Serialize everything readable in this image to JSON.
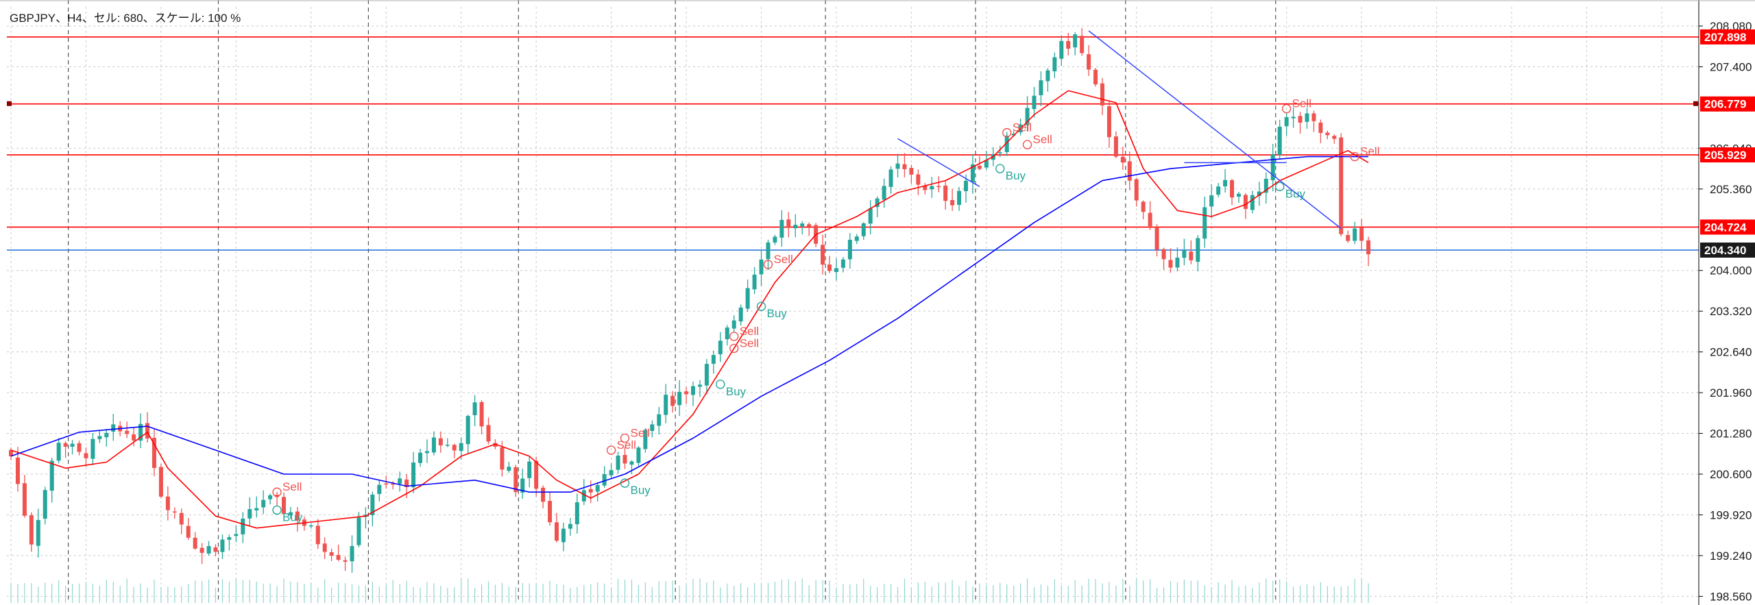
{
  "header": {
    "title": "GBPJPY、H4、セル: 680、スケール: 100 %"
  },
  "colors": {
    "background": "#ffffff",
    "grid": "#c8c8c8",
    "bull_candle": "#26a69a",
    "bear_candle": "#ef5350",
    "ma_short": "#ff0000",
    "ma_long": "#0000ff",
    "level_line": "#ff0000",
    "current_price_line": "#1e6fd9",
    "current_price_label_bg": "#1a1a1a",
    "level_label_bg": "#ff0000",
    "buy_signal": "#26a69a",
    "sell_signal": "#ef5350",
    "trendline": "#3344ff",
    "volume": "#8fd6cf"
  },
  "chart_data": {
    "type": "candlestick",
    "symbol": "GBPJPY",
    "timeframe": "H4",
    "ylim": [
      198.45,
      208.4
    ],
    "y_ticks": [
      "208.080",
      "207.400",
      "206.040",
      "205.360",
      "204.000",
      "203.320",
      "202.640",
      "201.960",
      "201.280",
      "200.600",
      "199.920",
      "199.240",
      "198.560"
    ],
    "grid": true,
    "horizontal_levels": [
      {
        "label": "207.898",
        "value": 207.898
      },
      {
        "label": "206.779",
        "value": 206.779
      },
      {
        "label": "205.929",
        "value": 205.929
      },
      {
        "label": "204.724",
        "value": 204.724
      }
    ],
    "current_price": {
      "label": "204.340",
      "value": 204.34
    },
    "candle_count": 200,
    "dividers_at_candle": [
      8,
      30,
      52,
      74,
      97,
      119,
      141,
      163,
      185
    ],
    "close_path": [
      [
        0,
        200.9
      ],
      [
        3,
        199.5
      ],
      [
        7,
        201.2
      ],
      [
        10,
        200.9
      ],
      [
        15,
        201.3
      ],
      [
        20,
        201.3
      ],
      [
        22,
        200.3
      ],
      [
        25,
        199.8
      ],
      [
        28,
        199.3
      ],
      [
        33,
        199.6
      ],
      [
        37,
        200.2
      ],
      [
        42,
        199.9
      ],
      [
        45,
        199.5
      ],
      [
        49,
        199.2
      ],
      [
        53,
        200.3
      ],
      [
        58,
        200.5
      ],
      [
        62,
        201.2
      ],
      [
        65,
        201.0
      ],
      [
        68,
        201.7
      ],
      [
        70,
        201.2
      ],
      [
        74,
        200.4
      ],
      [
        76,
        200.7
      ],
      [
        80,
        199.6
      ],
      [
        84,
        200.2
      ],
      [
        88,
        200.7
      ],
      [
        92,
        201.0
      ],
      [
        96,
        201.8
      ],
      [
        100,
        202.1
      ],
      [
        103,
        202.5
      ],
      [
        106,
        203.2
      ],
      [
        110,
        204.3
      ],
      [
        113,
        204.8
      ],
      [
        117,
        204.6
      ],
      [
        120,
        204.0
      ],
      [
        123,
        204.4
      ],
      [
        127,
        205.3
      ],
      [
        130,
        205.7
      ],
      [
        134,
        205.4
      ],
      [
        138,
        205.2
      ],
      [
        142,
        205.8
      ],
      [
        146,
        206.2
      ],
      [
        150,
        206.8
      ],
      [
        153,
        207.6
      ],
      [
        156,
        207.9
      ],
      [
        159,
        207.0
      ],
      [
        161,
        206.3
      ],
      [
        164,
        205.4
      ],
      [
        167,
        204.7
      ],
      [
        170,
        204.0
      ],
      [
        173,
        204.3
      ],
      [
        175,
        205.0
      ],
      [
        178,
        205.5
      ],
      [
        181,
        205.0
      ],
      [
        184,
        205.4
      ],
      [
        186,
        206.5
      ],
      [
        190,
        206.5
      ],
      [
        194,
        206.1
      ],
      [
        195,
        204.6
      ],
      [
        197,
        204.6
      ],
      [
        199,
        204.34
      ]
    ],
    "series": [
      {
        "name": "",
        "kind": "ma_short",
        "points": [
          [
            0,
            201.0
          ],
          [
            8,
            200.7
          ],
          [
            14,
            200.8
          ],
          [
            20,
            201.3
          ],
          [
            23,
            200.7
          ],
          [
            30,
            199.9
          ],
          [
            36,
            199.7
          ],
          [
            44,
            199.8
          ],
          [
            52,
            199.9
          ],
          [
            60,
            200.4
          ],
          [
            66,
            200.9
          ],
          [
            71,
            201.1
          ],
          [
            76,
            200.9
          ],
          [
            80,
            200.5
          ],
          [
            85,
            200.2
          ],
          [
            92,
            200.6
          ],
          [
            100,
            201.6
          ],
          [
            106,
            202.7
          ],
          [
            112,
            203.8
          ],
          [
            118,
            204.6
          ],
          [
            124,
            204.9
          ],
          [
            130,
            205.3
          ],
          [
            137,
            205.5
          ],
          [
            144,
            205.9
          ],
          [
            150,
            206.6
          ],
          [
            155,
            207.0
          ],
          [
            162,
            206.8
          ],
          [
            166,
            205.7
          ],
          [
            171,
            205.0
          ],
          [
            176,
            204.9
          ],
          [
            181,
            205.1
          ],
          [
            186,
            205.5
          ],
          [
            192,
            205.8
          ],
          [
            196,
            206.0
          ],
          [
            199,
            205.8
          ]
        ]
      },
      {
        "name": "",
        "kind": "ma_long",
        "points": [
          [
            0,
            200.9
          ],
          [
            10,
            201.3
          ],
          [
            20,
            201.4
          ],
          [
            30,
            201.0
          ],
          [
            40,
            200.6
          ],
          [
            50,
            200.6
          ],
          [
            58,
            200.4
          ],
          [
            68,
            200.5
          ],
          [
            76,
            200.3
          ],
          [
            82,
            200.3
          ],
          [
            90,
            200.6
          ],
          [
            100,
            201.2
          ],
          [
            110,
            201.9
          ],
          [
            120,
            202.5
          ],
          [
            130,
            203.2
          ],
          [
            140,
            204.0
          ],
          [
            150,
            204.8
          ],
          [
            160,
            205.5
          ],
          [
            170,
            205.7
          ],
          [
            180,
            205.8
          ],
          [
            190,
            205.9
          ],
          [
            199,
            205.9
          ]
        ]
      }
    ],
    "trendlines": [
      {
        "from": [
          130,
          206.2
        ],
        "to": [
          142,
          205.4
        ]
      },
      {
        "from": [
          158,
          208.0
        ],
        "to": [
          195,
          204.7
        ]
      },
      {
        "from": [
          172,
          205.8
        ],
        "to": [
          187,
          205.8
        ]
      }
    ],
    "signals": [
      {
        "type": "Sell",
        "label": "Sell",
        "candle": 39,
        "price": 200.3
      },
      {
        "type": "Buy",
        "label": "Buy",
        "candle": 39,
        "price": 200.0
      },
      {
        "type": "Sell",
        "label": "Sell",
        "candle": 90,
        "price": 201.2
      },
      {
        "type": "Sell",
        "label": "Sell",
        "candle": 88,
        "price": 201.0
      },
      {
        "type": "Buy",
        "label": "Buy",
        "candle": 90,
        "price": 200.45
      },
      {
        "type": "Buy",
        "label": "Buy",
        "candle": 104,
        "price": 202.1
      },
      {
        "type": "Sell",
        "label": "Sell",
        "candle": 106,
        "price": 202.9
      },
      {
        "type": "Sell",
        "label": "Sell",
        "candle": 106,
        "price": 202.7
      },
      {
        "type": "Buy",
        "label": "Buy",
        "candle": 110,
        "price": 203.4
      },
      {
        "type": "Sell",
        "label": "Sell",
        "candle": 111,
        "price": 204.1
      },
      {
        "type": "Sell",
        "label": "Sell",
        "candle": 146,
        "price": 206.3
      },
      {
        "type": "Sell",
        "label": "Sell",
        "candle": 149,
        "price": 206.1
      },
      {
        "type": "Buy",
        "label": "Buy",
        "candle": 145,
        "price": 205.7
      },
      {
        "type": "Sell",
        "label": "Sell",
        "candle": 187,
        "price": 206.7
      },
      {
        "type": "Buy",
        "label": "Buy",
        "candle": 186,
        "price": 205.4
      },
      {
        "type": "Sell",
        "label": "Sell",
        "candle": 197,
        "price": 205.9
      }
    ]
  }
}
